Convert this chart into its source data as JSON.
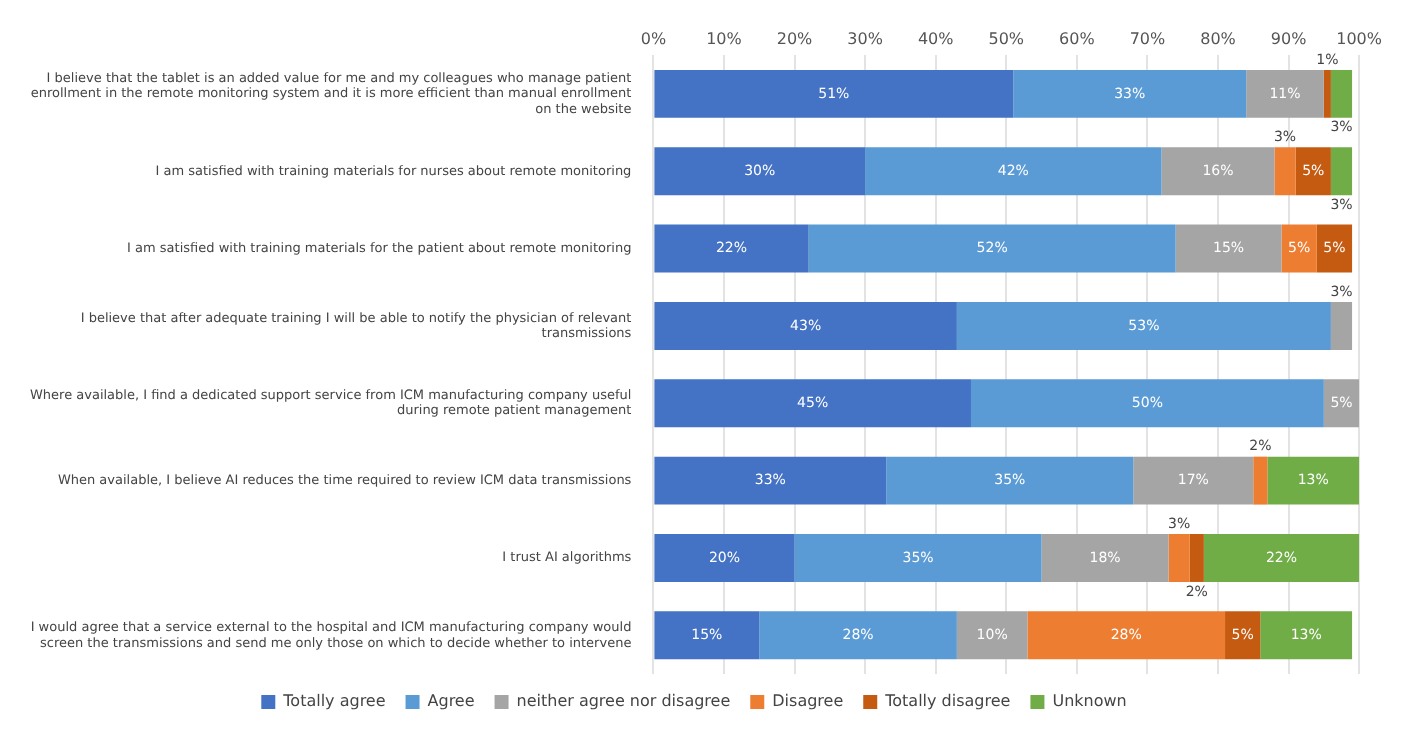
{
  "chart_data": {
    "type": "bar",
    "orientation": "horizontal",
    "stacked": true,
    "categories": [
      "I believe that the tablet is an added value for me and my colleagues who manage patient enrollment in the remote monitoring system and it is more efficient than manual enrollment on the website",
      "I am satisfied with training materials for nurses about remote monitoring",
      "I am satisfied with training materials for the patient about remote monitoring",
      "I believe that after adequate training I will be able to notify the physician of relevant transmissions",
      "Where available, I find a dedicated support service from ICM manufacturing company useful during remote patient management",
      "When available, I believe AI reduces the time required to review ICM data transmissions",
      "I trust AI algorithms",
      "I would agree that a service external to the hospital and ICM manufacturing company would screen the transmissions and send me only those on which to decide whether to intervene"
    ],
    "series": [
      {
        "name": "Totally agree",
        "color": "#4472c4",
        "values": [
          51,
          30,
          22,
          43,
          45,
          33,
          20,
          15
        ],
        "value_labels": [
          "51%",
          "30%",
          "22%",
          "43%",
          "45%",
          "33%",
          "20%",
          "15%"
        ]
      },
      {
        "name": "Agree",
        "color": "#5b9bd5",
        "values": [
          33,
          42,
          52,
          53,
          50,
          35,
          35,
          28
        ],
        "value_labels": [
          "33%",
          "42%",
          "52%",
          "53%",
          "50%",
          "35%",
          "35%",
          "28%"
        ]
      },
      {
        "name": "neither agree nor disagree",
        "color": "#a5a5a5",
        "values": [
          11,
          16,
          15,
          3,
          5,
          17,
          18,
          10
        ],
        "value_labels": [
          "11%",
          "16%",
          "15%",
          "3%",
          "5%",
          "17%",
          "18%",
          "10%"
        ]
      },
      {
        "name": "Disagree",
        "color": "#ed7d31",
        "values": [
          null,
          3,
          5,
          null,
          null,
          2,
          3,
          28
        ],
        "value_labels": [
          null,
          "3%",
          "5%",
          null,
          null,
          "2%",
          "3%",
          "28%"
        ]
      },
      {
        "name": "Totally disagree",
        "color": "#c55a11",
        "values": [
          1,
          5,
          5,
          null,
          null,
          null,
          2,
          5
        ],
        "value_labels": [
          "1%",
          "5%",
          "5%",
          null,
          null,
          null,
          "2%",
          "5%"
        ]
      },
      {
        "name": "Unknown",
        "color": "#70ad47",
        "values": [
          3,
          3,
          null,
          null,
          null,
          13,
          22,
          13
        ],
        "value_labels": [
          "3%",
          "3%",
          null,
          null,
          null,
          "13%",
          "22%",
          "13%"
        ]
      }
    ],
    "xlim": [
      0,
      100
    ],
    "xticks": [
      {
        "value": 0,
        "label": "0%"
      },
      {
        "value": 10,
        "label": "10%"
      },
      {
        "value": 20,
        "label": "20%"
      },
      {
        "value": 30,
        "label": "30%"
      },
      {
        "value": 40,
        "label": "40%"
      },
      {
        "value": 50,
        "label": "50%"
      },
      {
        "value": 60,
        "label": "60%"
      },
      {
        "value": 70,
        "label": "70%"
      },
      {
        "value": 80,
        "label": "80%"
      },
      {
        "value": 90,
        "label": "90%"
      },
      {
        "value": 100,
        "label": "100%"
      }
    ],
    "grid": "x",
    "legend": "bottom"
  }
}
